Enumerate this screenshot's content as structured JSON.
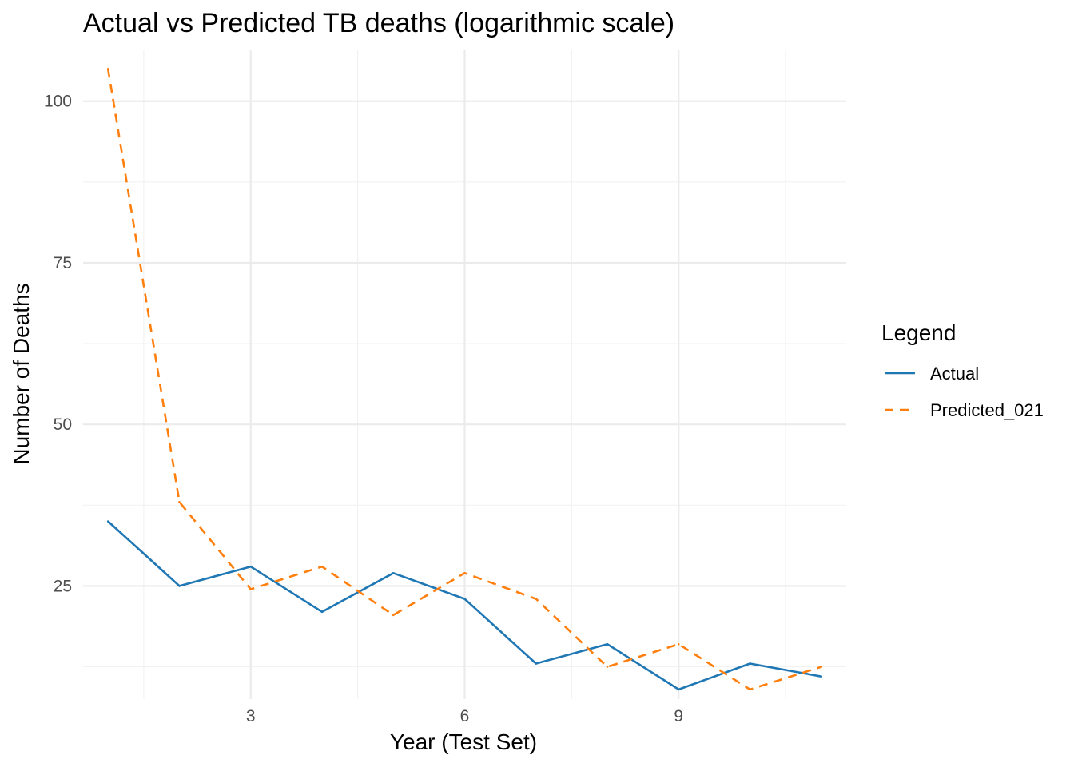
{
  "chart_data": {
    "type": "line",
    "title": "Actual vs Predicted TB deaths (logarithmic scale)",
    "xlabel": "Year (Test Set)",
    "ylabel": "Number of Deaths",
    "xlim": [
      0.65,
      11.35
    ],
    "ylim": [
      7.5,
      108
    ],
    "x_ticks": [
      3,
      6,
      9
    ],
    "x_tick_labels": [
      "3",
      "6",
      "9"
    ],
    "x_minor_ticks": [
      1.5,
      4.5,
      7.5,
      10.5
    ],
    "y_ticks": [
      25,
      50,
      75,
      100
    ],
    "y_tick_labels": [
      "25",
      "50",
      "75",
      "100"
    ],
    "y_minor_ticks": [
      12.5,
      37.5,
      62.5,
      87.5
    ],
    "grid": true,
    "legend": {
      "title": "Legend",
      "position": "right"
    },
    "x": [
      1,
      2,
      3,
      4,
      5,
      6,
      7,
      8,
      9,
      10,
      11
    ],
    "series": [
      {
        "name": "Actual",
        "color": "#1f77b4",
        "dash": "solid",
        "values": [
          35,
          25,
          28,
          21,
          27,
          23,
          13,
          16,
          9,
          13,
          11
        ]
      },
      {
        "name": "Predicted_021",
        "color": "#ff7f0e",
        "dash": "dashed",
        "values": [
          105,
          38,
          24.5,
          28,
          20.5,
          27,
          23,
          12.5,
          16,
          9,
          12.5
        ]
      }
    ]
  }
}
